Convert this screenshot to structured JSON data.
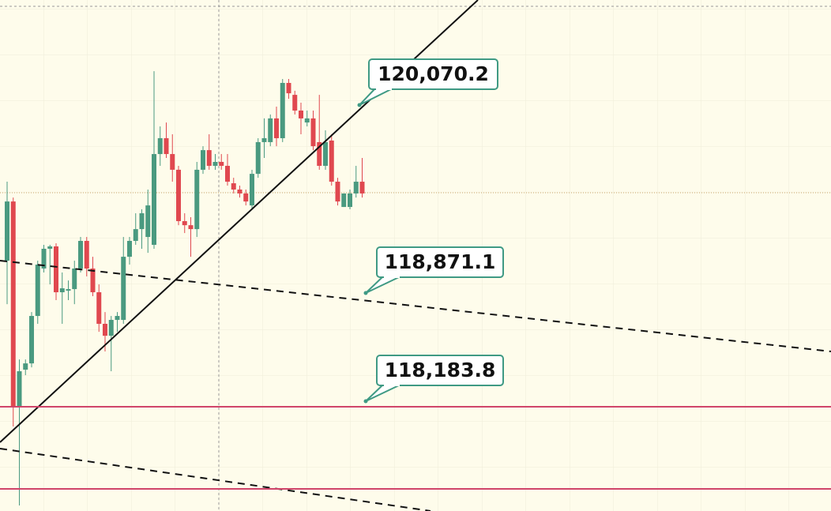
{
  "chart_data": {
    "type": "candlestick",
    "ylim": [
      117486,
      120740
    ],
    "up_color": "#4a9a80",
    "down_color": "#e0484f",
    "open": [
      119080,
      119457,
      118150,
      118386,
      118426,
      118728,
      119030,
      119156,
      119171,
      118879,
      118889,
      118899,
      119030,
      119206,
      119030,
      118879,
      118678,
      118602,
      118703,
      118703,
      119105,
      119206,
      119281,
      119231,
      119181,
      119759,
      119860,
      119759,
      119659,
      119332,
      119306,
      119281,
      119659,
      119784,
      119684,
      119709,
      119684,
      119573,
      119533,
      119508,
      119432,
      119633,
      119835,
      119835,
      119986,
      119860,
      120212,
      120136,
      120036,
      119960,
      119986,
      119835,
      119684,
      119845,
      119583,
      119422,
      119422,
      119508,
      119583
    ],
    "high": [
      119583,
      119482,
      118451,
      118451,
      118753,
      119080,
      119181,
      119181,
      119191,
      119005,
      118954,
      119080,
      119231,
      119231,
      119105,
      118929,
      118753,
      118728,
      118753,
      119231,
      119231,
      119382,
      119407,
      119533,
      120287,
      119935,
      119960,
      119885,
      119684,
      119382,
      119357,
      119709,
      119809,
      119885,
      119759,
      119759,
      119759,
      119608,
      119558,
      119533,
      119659,
      119860,
      119986,
      120011,
      120061,
      120237,
      120237,
      120162,
      120086,
      120036,
      120036,
      120136,
      119910,
      119885,
      119608,
      119508,
      119533,
      119684,
      119734
    ],
    "low": [
      118803,
      118024,
      117521,
      118351,
      118401,
      118678,
      119005,
      118929,
      118829,
      118678,
      118829,
      118803,
      119005,
      118980,
      118854,
      118627,
      118502,
      118376,
      118627,
      118678,
      119055,
      119181,
      119156,
      119130,
      119156,
      119684,
      119734,
      119583,
      119306,
      119256,
      119105,
      119231,
      119633,
      119659,
      119659,
      119659,
      119558,
      119508,
      119482,
      119432,
      119407,
      119608,
      119734,
      119809,
      119809,
      119835,
      120111,
      120011,
      119885,
      119935,
      119784,
      119659,
      119659,
      119558,
      119432,
      119422,
      119407,
      119482,
      119482
    ],
    "close": [
      119457,
      118150,
      118376,
      118426,
      118728,
      119055,
      119156,
      119171,
      118879,
      118904,
      118899,
      119030,
      119206,
      119030,
      118879,
      118678,
      118602,
      118703,
      118728,
      119105,
      119206,
      119281,
      119382,
      119432,
      119759,
      119860,
      119759,
      119659,
      119332,
      119306,
      119281,
      119659,
      119784,
      119684,
      119709,
      119684,
      119583,
      119533,
      119508,
      119457,
      119633,
      119835,
      119860,
      119986,
      119860,
      120212,
      120146,
      120036,
      119986,
      119986,
      119809,
      119684,
      119835,
      119583,
      119457,
      119508,
      119508,
      119583,
      119508
    ],
    "annotations": [
      {
        "label": "120,070.2"
      },
      {
        "label": "118,871.1"
      },
      {
        "label": "118,183.8"
      }
    ]
  }
}
